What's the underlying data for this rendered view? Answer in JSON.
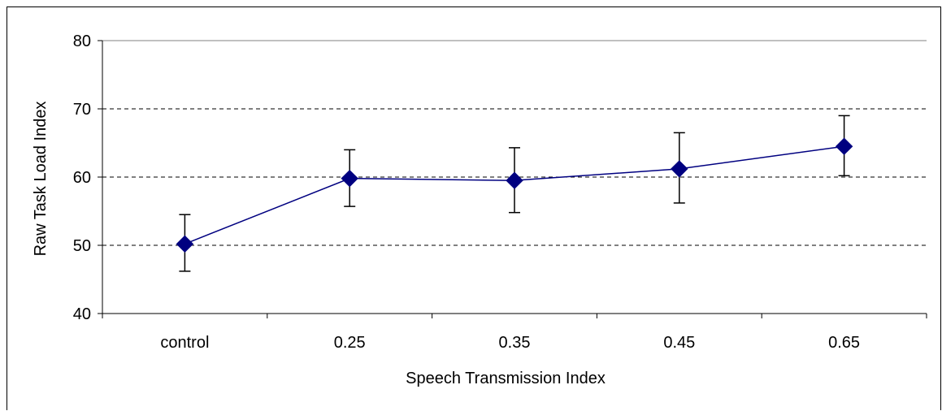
{
  "chart_data": {
    "type": "line",
    "title": "",
    "xlabel": "Speech Transmission Index",
    "ylabel": "Raw Task Load Index",
    "categories": [
      "control",
      "0.25",
      "0.35",
      "0.45",
      "0.65"
    ],
    "series": [
      {
        "values": [
          50.2,
          59.8,
          59.5,
          61.2,
          64.5
        ],
        "error_low": [
          46.2,
          55.7,
          54.8,
          56.2,
          60.2
        ],
        "error_high": [
          54.5,
          64.0,
          64.3,
          66.5,
          69.0
        ],
        "color": "#000080",
        "marker": "diamond"
      }
    ],
    "ylim": [
      40,
      80
    ],
    "yticks": [
      "40",
      "50",
      "60",
      "70",
      "80"
    ],
    "grid": "horizontal-dashed",
    "legend": "none"
  }
}
